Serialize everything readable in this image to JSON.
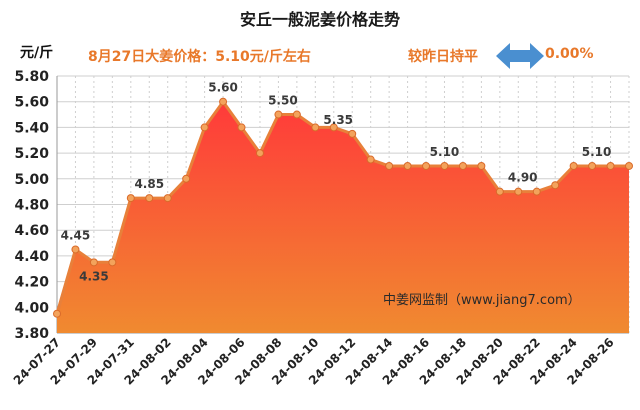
{
  "chart_data": {
    "type": "area",
    "title": "安丘一般泥姜价格走势",
    "ylabel": "元/斤",
    "ylim": [
      3.8,
      5.8
    ],
    "yticks": [
      "3.80",
      "4.00",
      "4.20",
      "4.40",
      "4.60",
      "4.80",
      "5.00",
      "5.20",
      "5.40",
      "5.60",
      "5.80"
    ],
    "xtick_labels": [
      "24-07-27",
      "24-07-29",
      "24-07-31",
      "24-08-02",
      "24-08-04",
      "24-08-06",
      "24-08-08",
      "24-08-10",
      "24-08-12",
      "24-08-14",
      "24-08-16",
      "24-08-18",
      "24-08-20",
      "24-08-22",
      "24-08-24",
      "24-08-26"
    ],
    "grid": true,
    "x": [
      "24-07-27",
      "24-07-28",
      "24-07-29",
      "24-07-30",
      "24-07-31",
      "24-08-01",
      "24-08-02",
      "24-08-03",
      "24-08-04",
      "24-08-05",
      "24-08-06",
      "24-08-07",
      "24-08-08",
      "24-08-09",
      "24-08-10",
      "24-08-11",
      "24-08-12",
      "24-08-13",
      "24-08-14",
      "24-08-15",
      "24-08-16",
      "24-08-17",
      "24-08-18",
      "24-08-19",
      "24-08-20",
      "24-08-21",
      "24-08-22",
      "24-08-23",
      "24-08-24",
      "24-08-25",
      "24-08-26",
      "24-08-27"
    ],
    "series": [
      {
        "values": [
          3.95,
          4.45,
          4.35,
          4.35,
          4.85,
          4.85,
          4.85,
          5.0,
          5.4,
          5.6,
          5.4,
          5.2,
          5.5,
          5.5,
          5.4,
          5.4,
          5.35,
          5.15,
          5.1,
          5.1,
          5.1,
          5.1,
          5.1,
          5.1,
          4.9,
          4.9,
          4.9,
          4.95,
          5.1,
          5.1,
          5.1,
          5.1
        ]
      }
    ],
    "data_labels": [
      {
        "index": 1,
        "text": "4.45",
        "pos": "above"
      },
      {
        "index": 2,
        "text": "4.35",
        "pos": "below"
      },
      {
        "index": 5,
        "text": "4.85",
        "pos": "above"
      },
      {
        "index": 9,
        "text": "5.60",
        "pos": "above"
      },
      {
        "index": 13,
        "text": "5.50",
        "pos": "above-left"
      },
      {
        "index": 16,
        "text": "5.35",
        "pos": "above-left"
      },
      {
        "index": 21,
        "text": "5.10",
        "pos": "above"
      },
      {
        "index": 26,
        "text": "4.90",
        "pos": "above-left"
      },
      {
        "index": 30,
        "text": "5.10",
        "pos": "above-left"
      }
    ],
    "colors": {
      "line": "#e8803a",
      "fill_top": "#ff3a3a",
      "fill_bottom": "#f08a30",
      "marker": "#f3a35c",
      "grid": "#cfcfcf"
    }
  },
  "header": {
    "y_unit": "元/斤",
    "price_info": "8月27日大姜价格：5.10元/斤左右",
    "change_label": "较昨日持平",
    "change_value": "0.00%",
    "change_icon": "double-arrow-icon",
    "change_icon_color": "#4a8fd0"
  },
  "watermark": "中姜网监制（www.jiang7.com）"
}
